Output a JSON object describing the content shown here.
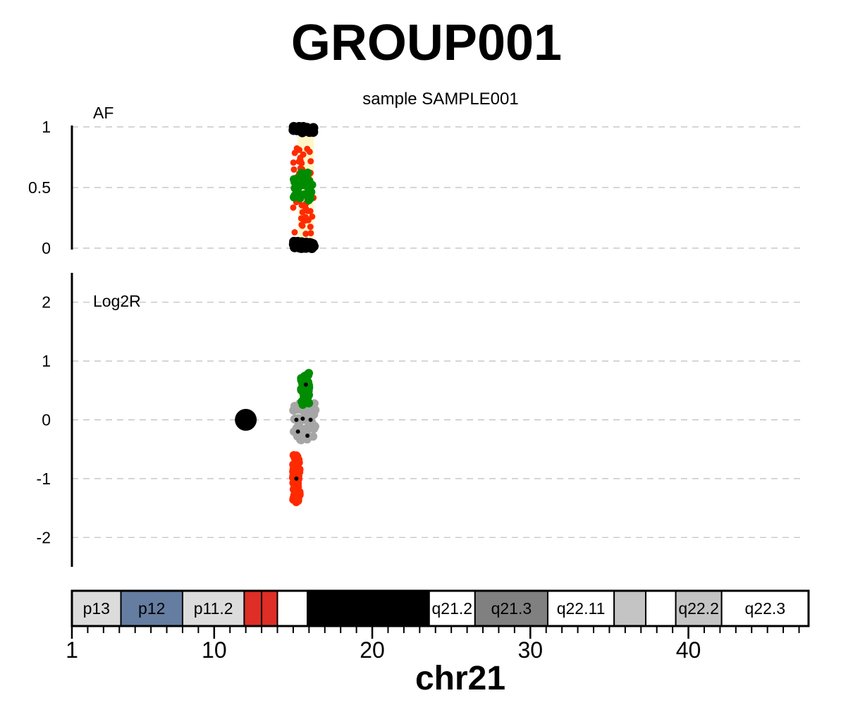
{
  "chart_data": {
    "type": "scatter",
    "title": "GROUP001",
    "subtitle": "sample SAMPLE001",
    "xlabel": "chr21",
    "x_ticks": [
      1,
      10,
      20,
      30,
      40
    ],
    "xlim": [
      1,
      47
    ],
    "panels": {
      "af": {
        "label": "AF",
        "ylim": [
          0,
          1
        ],
        "y_ticks": [
          {
            "value": 0,
            "label": "0"
          },
          {
            "value": 0.5,
            "label": "0.5"
          },
          {
            "value": 1,
            "label": "1"
          }
        ],
        "grid": true,
        "shaded_region": {
          "x": [
            15.3,
            16.3
          ],
          "y": [
            0,
            1
          ],
          "color": "#fff6c8"
        },
        "series": [
          {
            "color": "#000000",
            "x_range": [
              15.0,
              16.3
            ],
            "y_values": [
              0.01,
              0.02,
              0.03,
              0.04,
              0.97,
              0.98,
              0.99
            ]
          },
          {
            "color": "#ff2a00",
            "x_range": [
              15.0,
              16.3
            ],
            "y_values": [
              0.12,
              0.18,
              0.22,
              0.26,
              0.3,
              0.34,
              0.38,
              0.42,
              0.58,
              0.62,
              0.66,
              0.7,
              0.73,
              0.78,
              0.82
            ]
          },
          {
            "color": "#008c00",
            "x_range": [
              15.0,
              16.3
            ],
            "y_values": [
              0.4,
              0.43,
              0.46,
              0.49,
              0.52,
              0.55,
              0.58,
              0.61
            ]
          }
        ]
      },
      "log2r": {
        "label": "Log2R",
        "ylim": [
          -2.5,
          2.5
        ],
        "y_ticks": [
          {
            "value": -2,
            "label": "-2"
          },
          {
            "value": -1,
            "label": "-1"
          },
          {
            "value": 0,
            "label": "0"
          },
          {
            "value": 1,
            "label": "1"
          },
          {
            "value": 2,
            "label": "2"
          }
        ],
        "grid": true,
        "series": [
          {
            "color": "#a6a6a6",
            "x_range": [
              15.0,
              16.4
            ],
            "y_range": [
              -0.35,
              0.3
            ]
          },
          {
            "color": "#008c00",
            "x_range": [
              15.5,
              16.0
            ],
            "y_range": [
              0.25,
              0.8
            ]
          },
          {
            "color": "#ff2a00",
            "x_range": [
              15.0,
              15.4
            ],
            "y_range": [
              -1.4,
              -0.6
            ]
          },
          {
            "color": "#000000",
            "points": [
              [
                12.0,
                0.0
              ],
              [
                15.2,
                0.0
              ],
              [
                15.6,
                0.02
              ],
              [
                16.1,
                0.0
              ],
              [
                15.3,
                -0.2
              ],
              [
                15.9,
                -0.27
              ],
              [
                15.2,
                -1.0
              ],
              [
                15.8,
                0.6
              ]
            ]
          }
        ]
      }
    },
    "ideogram": {
      "bands": [
        {
          "start": 1,
          "end": 4.1,
          "label": "p13",
          "fill": "#dcdcdc"
        },
        {
          "start": 4.1,
          "end": 8.0,
          "label": "p12",
          "fill": "#657da1"
        },
        {
          "start": 8.0,
          "end": 11.9,
          "label": "p11.2",
          "fill": "#dcdcdc"
        },
        {
          "start": 11.9,
          "end": 13.0,
          "label": "",
          "fill": "#de2e26"
        },
        {
          "start": 13.0,
          "end": 14.0,
          "label": "",
          "fill": "#de2e26"
        },
        {
          "start": 14.0,
          "end": 15.9,
          "label": "",
          "fill": "#ffffff"
        },
        {
          "start": 15.9,
          "end": 23.6,
          "label": "",
          "fill": "#000000"
        },
        {
          "start": 23.6,
          "end": 26.5,
          "label": "q21.2",
          "fill": "#ffffff"
        },
        {
          "start": 26.5,
          "end": 31.1,
          "label": "q21.3",
          "fill": "#808080"
        },
        {
          "start": 31.1,
          "end": 35.3,
          "label": "q22.11",
          "fill": "#ffffff"
        },
        {
          "start": 35.3,
          "end": 37.3,
          "label": "",
          "fill": "#c4c4c4"
        },
        {
          "start": 37.3,
          "end": 39.2,
          "label": "",
          "fill": "#ffffff"
        },
        {
          "start": 39.2,
          "end": 42.1,
          "label": "q22.2",
          "fill": "#c4c4c4"
        },
        {
          "start": 42.1,
          "end": 47.6,
          "label": "q22.3",
          "fill": "#ffffff"
        }
      ]
    }
  }
}
